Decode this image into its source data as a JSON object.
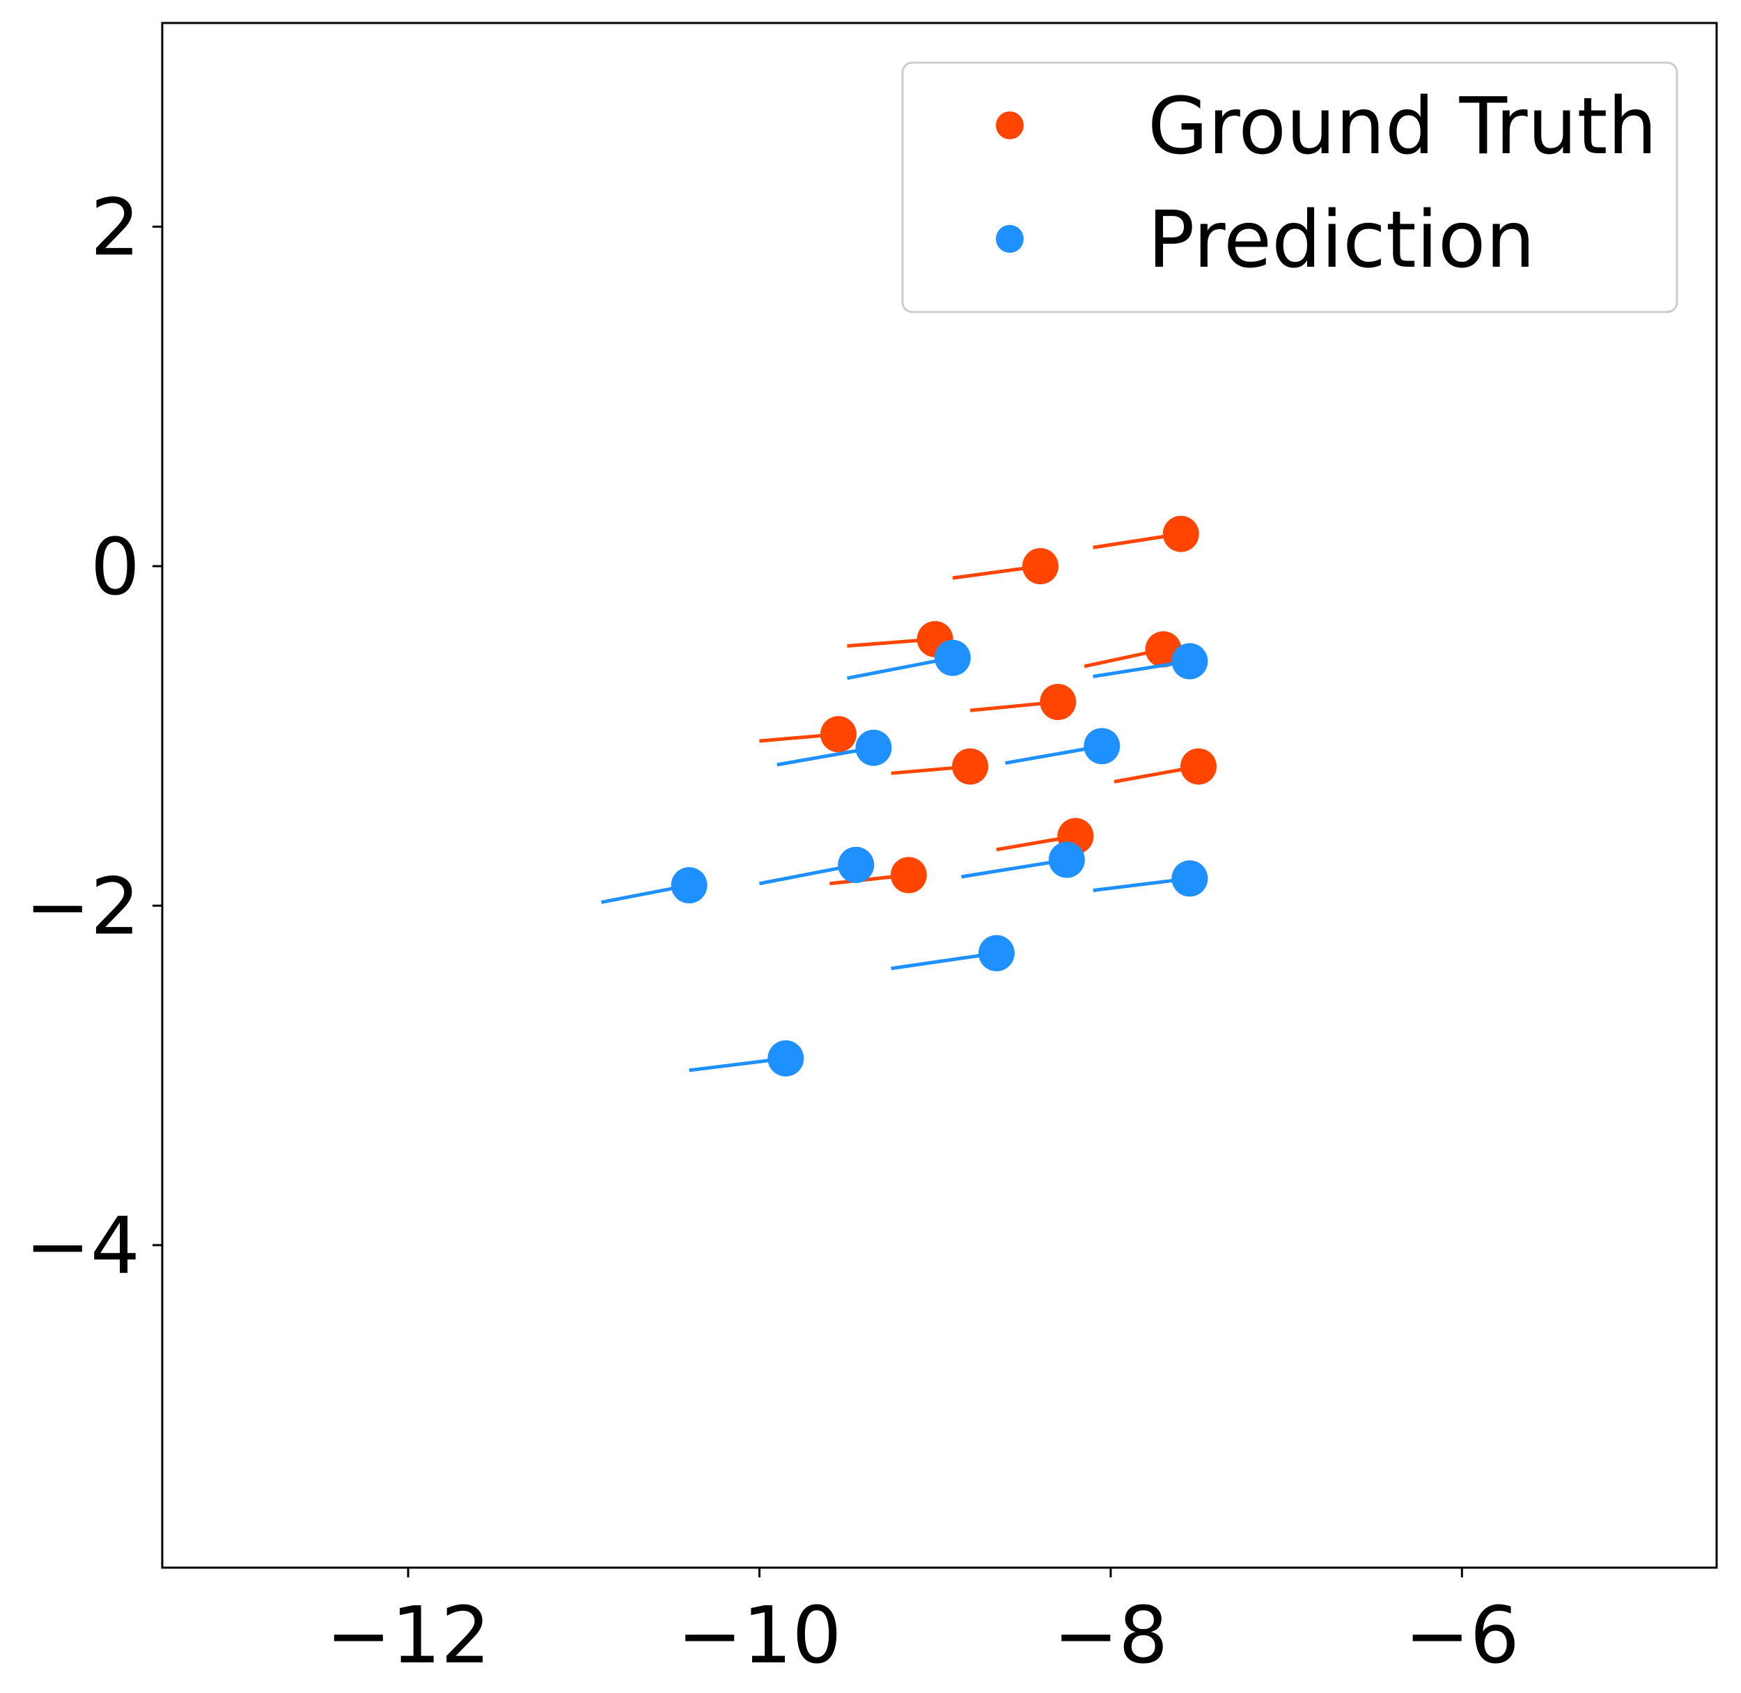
{
  "chart_data": {
    "type": "scatter",
    "title": "",
    "xlabel": "",
    "ylabel": "",
    "xlim": [
      -13.4,
      -4.55
    ],
    "ylim": [
      -5.9,
      3.2
    ],
    "xticks": [
      -12,
      -10,
      -8,
      -6
    ],
    "yticks": [
      -4,
      -2,
      0,
      2
    ],
    "xtick_labels": [
      "−12",
      "−10",
      "−8",
      "−6"
    ],
    "ytick_labels": [
      "−4",
      "−2",
      "0",
      "2"
    ],
    "grid": false,
    "legend_placement": "top-right",
    "series": [
      {
        "name": "Ground Truth",
        "color": "#ff4500",
        "points": [
          {
            "x": -7.6,
            "y": 0.19,
            "tail_x": -8.1,
            "tail_y": 0.11
          },
          {
            "x": -8.4,
            "y": 0.0,
            "tail_x": -8.9,
            "tail_y": -0.07
          },
          {
            "x": -9.0,
            "y": -0.43,
            "tail_x": -9.5,
            "tail_y": -0.47
          },
          {
            "x": -7.7,
            "y": -0.49,
            "tail_x": -8.15,
            "tail_y": -0.59
          },
          {
            "x": -8.3,
            "y": -0.8,
            "tail_x": -8.8,
            "tail_y": -0.85
          },
          {
            "x": -9.55,
            "y": -0.99,
            "tail_x": -10.0,
            "tail_y": -1.03
          },
          {
            "x": -8.8,
            "y": -1.18,
            "tail_x": -9.25,
            "tail_y": -1.22
          },
          {
            "x": -7.5,
            "y": -1.18,
            "tail_x": -7.98,
            "tail_y": -1.27
          },
          {
            "x": -8.2,
            "y": -1.59,
            "tail_x": -8.65,
            "tail_y": -1.67
          },
          {
            "x": -9.15,
            "y": -1.82,
            "tail_x": -9.6,
            "tail_y": -1.87
          }
        ]
      },
      {
        "name": "Prediction",
        "color": "#1e90ff",
        "points": [
          {
            "x": -8.9,
            "y": -0.54,
            "tail_x": -9.5,
            "tail_y": -0.66
          },
          {
            "x": -7.55,
            "y": -0.56,
            "tail_x": -8.1,
            "tail_y": -0.65
          },
          {
            "x": -9.35,
            "y": -1.07,
            "tail_x": -9.9,
            "tail_y": -1.17
          },
          {
            "x": -8.05,
            "y": -1.06,
            "tail_x": -8.6,
            "tail_y": -1.16
          },
          {
            "x": -10.4,
            "y": -1.88,
            "tail_x": -10.9,
            "tail_y": -1.98
          },
          {
            "x": -9.45,
            "y": -1.76,
            "tail_x": -10.0,
            "tail_y": -1.87
          },
          {
            "x": -8.25,
            "y": -1.73,
            "tail_x": -8.85,
            "tail_y": -1.83
          },
          {
            "x": -7.55,
            "y": -1.84,
            "tail_x": -8.1,
            "tail_y": -1.91
          },
          {
            "x": -8.65,
            "y": -2.28,
            "tail_x": -9.25,
            "tail_y": -2.37
          },
          {
            "x": -9.85,
            "y": -2.9,
            "tail_x": -10.4,
            "tail_y": -2.97
          }
        ]
      }
    ]
  }
}
